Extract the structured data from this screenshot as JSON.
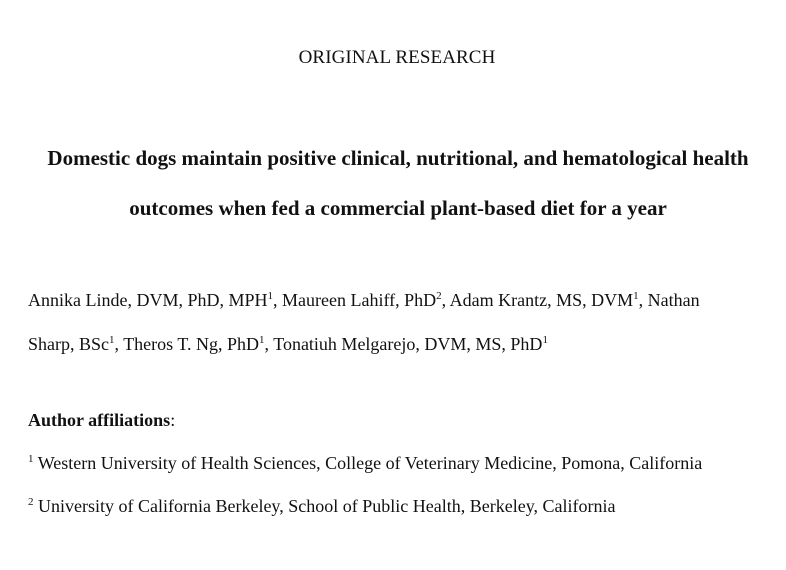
{
  "header": {
    "section_label": "ORIGINAL RESEARCH"
  },
  "title": {
    "line1": "Domestic dogs maintain positive clinical, nutritional, and hematological health",
    "line2": "outcomes when fed a commercial plant-based diet for a year"
  },
  "authors": [
    {
      "name": "Annika Linde, DVM, PhD, MPH",
      "aff": "1"
    },
    {
      "name": "Maureen Lahiff, PhD",
      "aff": "2"
    },
    {
      "name": "Adam Krantz, MS, DVM",
      "aff": "1"
    },
    {
      "name_part1": "Nathan",
      "name_part2": "Sharp, BSc",
      "aff": "1"
    },
    {
      "name": "Theros T. Ng, PhD",
      "aff": "1"
    },
    {
      "name": "Tonatiuh Melgarejo, DVM, MS, PhD",
      "aff": "1"
    }
  ],
  "affiliations": {
    "heading": "Author affiliations",
    "heading_suffix": ":",
    "items": [
      {
        "number": "1",
        "text": "Western University of Health Sciences, College of Veterinary Medicine, Pomona, California"
      },
      {
        "number": "2",
        "text": "University of California Berkeley, School of Public Health, Berkeley, California"
      }
    ]
  }
}
